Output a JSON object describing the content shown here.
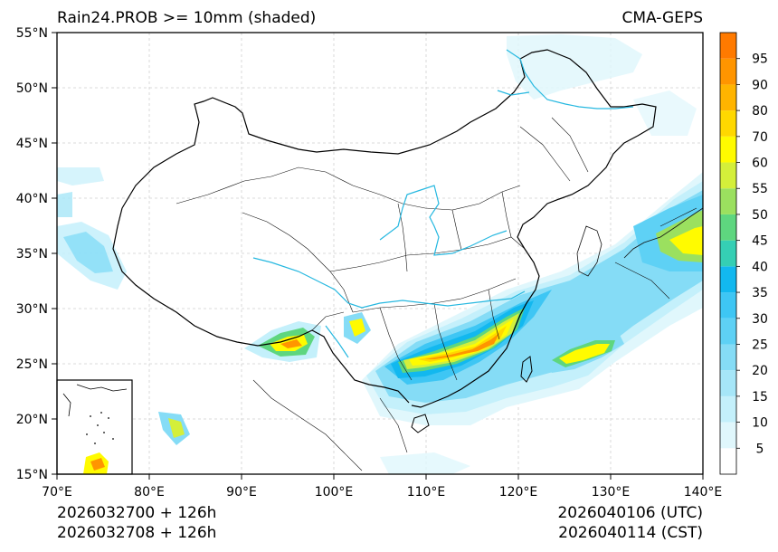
{
  "title_left": "Rain24.PROB >= 10mm (shaded)",
  "title_right": "CMA-GEPS",
  "lat_labels": [
    "55°N",
    "50°N",
    "45°N",
    "40°N",
    "35°N",
    "30°N",
    "25°N",
    "20°N",
    "15°N"
  ],
  "lon_labels": [
    "70°E",
    "80°E",
    "90°E",
    "100°E",
    "110°E",
    "120°E",
    "130°E",
    "140°E"
  ],
  "colorbar": {
    "labels": [
      "5",
      "10",
      "15",
      "20",
      "25",
      "30",
      "35",
      "40",
      "45",
      "50",
      "55",
      "60",
      "70",
      "80",
      "90",
      "95"
    ],
    "colors": [
      "#ffffff",
      "#e0f7fc",
      "#c4f0fb",
      "#a6e6f8",
      "#85dcf6",
      "#5ed1f5",
      "#3ec6f4",
      "#12b8ef",
      "#35cfb4",
      "#5ed67f",
      "#9be05f",
      "#d4ef3a",
      "#fffb00",
      "#ffd800",
      "#ffb400",
      "#ff9500",
      "#ff7a00"
    ]
  },
  "footer": {
    "init_utc": "2026032700 + 126h",
    "init_cst": "2026032708 + 126h",
    "valid_utc": "2026040106 (UTC)",
    "valid_cst": "2026040114 (CST)"
  }
}
